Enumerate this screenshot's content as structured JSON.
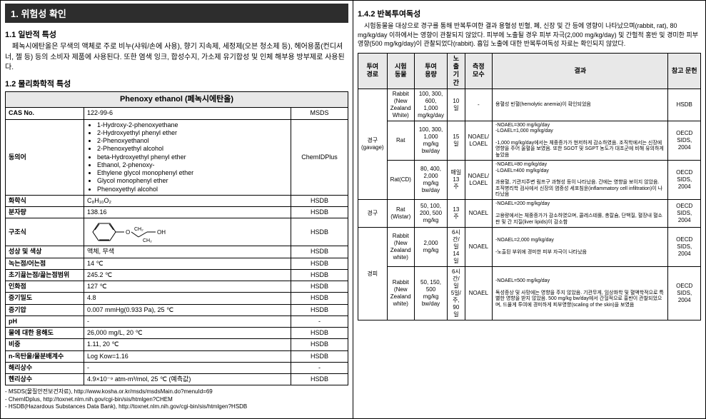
{
  "left": {
    "sectionTitle": "1. 위험성 확인",
    "s11_head": "1.1 일반적 특성",
    "s11_body": "페녹시에탄올은 무색의 액체로 주로 비누(샤워/손에 사용), 향기 지속제, 세정제(오븐 청소제 등), 헤어용품(컨디셔너, 젤 등) 등의 소비자 제품에 사용된다. 또한 염색 잉크, 합성수지, 가소제 유기합성 및 인체 해부용 방부제로 사용된다.",
    "s12_head": "1.2 물리화학적 특성",
    "tableTitle": "Phenoxy ethanol (페녹시에탄올)",
    "rows": [
      {
        "label": "CAS No.",
        "val": "122-99-6",
        "src": "MSDS"
      },
      {
        "label": "동의어",
        "val_list": [
          "1-Hydroxy-2-phenoxyethane",
          "2-Hydroxyethyl phenyl ether",
          "2-Phenoxyethanol",
          "2-Phenoxyethyl alcohol",
          "beta-Hydroxyethyl phenyl ether",
          "Ethanol, 2-phenoxy-",
          "Ethylene glycol monophenyl ether",
          "Glycol monophenyl ether",
          "Phenoxyethyl alcohol"
        ],
        "src": "ChemIDPlus"
      },
      {
        "label": "화학식",
        "val": "C₈H₁₀O₂",
        "src": "HSDB"
      },
      {
        "label": "분자량",
        "val": "138.16",
        "src": "HSDB"
      },
      {
        "label": "구조식",
        "val_struct": true,
        "src": "HSDB"
      },
      {
        "label": "성상 및 색상",
        "val": "액체, 무색",
        "src": "HSDB"
      },
      {
        "label": "녹는점/어는점",
        "val": "14 ℃",
        "src": "HSDB"
      },
      {
        "label": "초기끓는점/끓는점범위",
        "val": "245.2 ℃",
        "src": "HSDB"
      },
      {
        "label": "인화점",
        "val": "127 ℃",
        "src": "HSDB"
      },
      {
        "label": "증기밀도",
        "val": "4.8",
        "src": "HSDB"
      },
      {
        "label": "증기압",
        "val": "0.007 mmHg(0.933 Pa), 25 ℃",
        "src": "HSDB"
      },
      {
        "label": "pH",
        "val": "-",
        "src": "-"
      },
      {
        "label": "물에 대한 용해도",
        "val": "26,000 mg/L, 20 ℃",
        "src": "HSDB"
      },
      {
        "label": "비중",
        "val": "1.11, 20 ℃",
        "src": "HSDB"
      },
      {
        "label": "n-옥탄올/물분배계수",
        "val": "Log Kow=1.16",
        "src": "HSDB"
      },
      {
        "label": "해리상수",
        "val": "-",
        "src": "-"
      },
      {
        "label": "헨리상수",
        "val": "4.9×10⁻⁹ atm-m³/mol, 25 ℃ (예측값)",
        "src": "HSDB"
      }
    ],
    "footnotes": [
      "MSDS(물질안전보건자료), http://www.kosha.or.kr/msds/msdsMain.do?menuId=69",
      "ChemIDplus, http://toxnet.nlm.nih.gov/cgi-bin/sis/htmlgen?CHEM",
      "HSDB(Hazardous Substances Data Bank), http://toxnet.nlm.nih.gov/cgi-bin/sis/htmlgen?HSDB"
    ]
  },
  "right": {
    "s142_head": "1.4.2 반복투여독성",
    "s142_body": "시험동물을 대상으로 경구를 통해 반복투여한 결과 용혈성 빈혈, 폐, 신장 및 간 등에 영향이 나타났으며(rabbit, rat), 80 mg/kg/day 이하에서는 영향이 관찰되지 않았다. 피부에 노출될 경우 피부 자극(2,000 mg/kg/day) 및 간헐적 홍반 및 경미한 피부 영향(500 mg/kg/day)이 관찰되었다(rabbit). 흡입 노출에 대한 반복투여독성 자료는 확인되지 않았다.",
    "headers": [
      "투여\n경로",
      "시험\n동물",
      "투여\n용량",
      "노출\n기간",
      "측정\n모수",
      "결과",
      "참고 문헌"
    ],
    "rows": [
      {
        "route": "경구\n(gavage)",
        "rspan": 3,
        "animal": "Rabbit\n(New\nZealand\nWhite)",
        "dose": "100, 300,\n600, 1,000\nmg/kg/day",
        "dur": "10일",
        "param": "-",
        "result": "용혈성 빈혈(hemolytic anemia)이 확인되었음",
        "ref": "HSDB"
      },
      {
        "animal": "Rat",
        "dose": "100, 300,\n1,000\nmg/kg\nbw/day",
        "dur": "15일",
        "param": "NOAEL/\nLOAEL",
        "result": "-NOAEL=300 mg/kg/day\n-LOAEL=1,000 mg/kg/day\n\n-1,000 mg/kg/day에서는 체중증가가 현저하게 감소하였음. 조직학에서는 신장에 영향을 주어 울혈을 보였음. 또한 SGOT 및 SGPT 농도가 대조군에 비해 유의하게 높았음",
        "ref": "OECD SIDS, 2004"
      },
      {
        "animal": "Rat(CD)",
        "dose": "80, 400,\n2,000\nmg/kg\nbw/day",
        "dur": "매일\n13주",
        "param": "NOAEL/\nLOAEL",
        "result": "-NOAEL=80 mg/kg/day\n-LOAEL=400 mg/kg/day\n\n과용혈, 기관지주변 림프구 과형성 등이 나타났음. 간에는 영향을 보이지 않았음. 조직병리학 검사에서 신장의 염증성 세포침윤(inflammatory cell infiltration)이 나타났음",
        "ref": "OECD SIDS, 2004"
      },
      {
        "route": "경구",
        "rspan": 1,
        "animal": "Rat\n(Wistar)",
        "dose": "50, 100,\n200, 500\nmg/kg",
        "dur": "13주",
        "param": "NOAEL",
        "result": "-NOAEL=200 mg/kg/day\n\n고용량에서는 체중증가가 감소하였으며, 콜레스테롤, 총칼슘, 단백질, 혈장내 혈소판 및 간 지질(liver lipids)이 감소함",
        "ref": "OECD SIDS, 2004"
      },
      {
        "route": "경피",
        "rspan": 2,
        "animal": "Rabbit\n(New\nZealand\nwhite)",
        "dose": "2,000\nmg/kg",
        "dur": "6시간/일\n14일",
        "param": "NOAEL",
        "result": "-NOAEL=2,000 mg/kg/day\n\n-노출된 부위에 경미한 피부 자극이 나타났음",
        "ref": "OECD SIDS, 2004"
      },
      {
        "animal": "Rabbit\n(New\nZealand\nwhite)",
        "dose": "50, 150,\n500\nmg/kg\nbw/day",
        "dur": "6시간/일\n5일/주,\n90일",
        "param": "NOAEL",
        "result": "-NOAEL=500 mg/kg/day\n\n독성증상 및 사망에는 영향을 주지 않았음. 기관무게, 임상화학 및 혈액학적으로 특별한 영향을 받지 않았음. 500 mg/kg bw/day에서 간헐적으로 홍반이 관찰되었으며, 드물게 투여에 경미하게 피부영향(scaling of the skin)을 보였음",
        "ref": "OECD SIDS, 2004"
      }
    ]
  }
}
